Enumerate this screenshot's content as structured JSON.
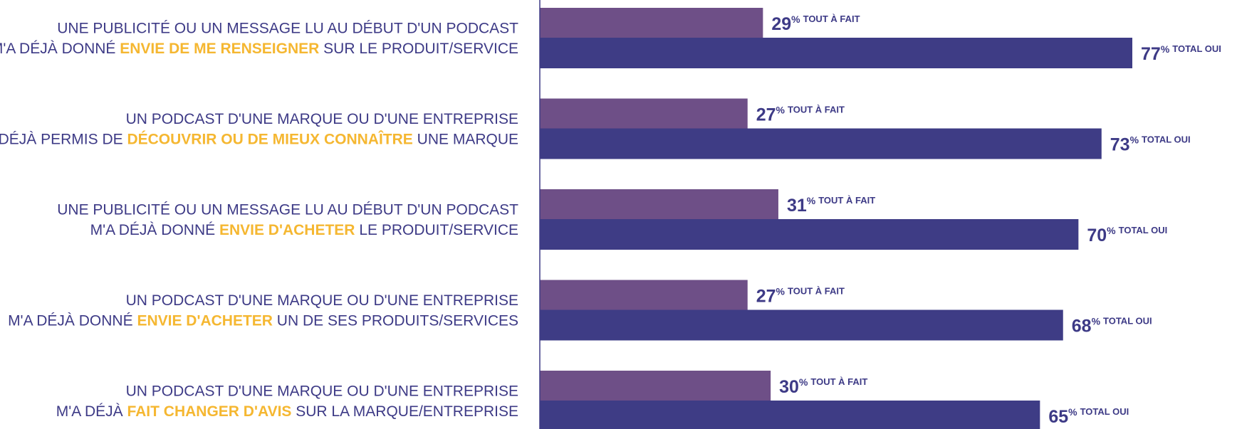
{
  "chart_data": {
    "type": "bar",
    "orientation": "horizontal",
    "unit": "%",
    "categories": [
      {
        "line1": "UNE PUBLICITÉ OU UN MESSAGE LU AU DÉBUT D'UN PODCAST",
        "line2": [
          "M'A DÉJÀ DONNÉ ",
          "ENVIE DE ME RENSEIGNER",
          " SUR LE PRODUIT/SERVICE"
        ]
      },
      {
        "line1": "UN PODCAST D'UNE MARQUE OU D'UNE ENTREPRISE",
        "line2": [
          "M'A DÉJÀ PERMIS DE ",
          "DÉCOUVRIR OU DE MIEUX CONNAÎTRE",
          " UNE MARQUE"
        ]
      },
      {
        "line1": "UNE PUBLICITÉ OU UN MESSAGE LU AU DÉBUT D'UN PODCAST",
        "line2": [
          "M'A DÉJÀ DONNÉ ",
          "ENVIE D'ACHETER",
          " LE PRODUIT/SERVICE"
        ]
      },
      {
        "line1": "UN PODCAST D'UNE MARQUE OU D'UNE ENTREPRISE",
        "line2": [
          "M'A DÉJÀ DONNÉ ",
          "ENVIE D'ACHETER",
          " UN DE SES PRODUITS/SERVICES"
        ]
      },
      {
        "line1": "UN PODCAST D'UNE MARQUE OU D'UNE ENTREPRISE",
        "line2": [
          "M'A DÉJÀ ",
          "FAIT CHANGER D'AVIS",
          " SUR LA MARQUE/ENTREPRISE"
        ]
      }
    ],
    "series": [
      {
        "name": "TOUT À FAIT",
        "color": "#6e4f87",
        "values": [
          29,
          27,
          31,
          27,
          30
        ]
      },
      {
        "name": "TOTAL OUI",
        "color": "#3e3c85",
        "values": [
          77,
          73,
          70,
          68,
          65
        ]
      }
    ],
    "label_color": "#3d3a86",
    "highlight_color": "#f5b731"
  }
}
